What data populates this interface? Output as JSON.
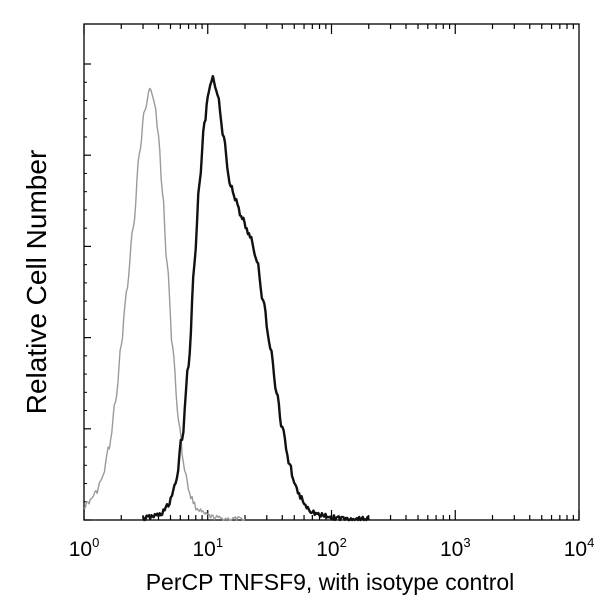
{
  "chart_data": {
    "type": "line",
    "title": "",
    "xlabel": "PerCP TNFSF9, with isotype control",
    "ylabel": "Relative Cell Number",
    "x_scale": "log",
    "xlim": [
      1,
      10000
    ],
    "ylim": [
      0,
      1
    ],
    "grid": false,
    "x_ticks": [
      {
        "base": "10",
        "exp": "0",
        "value": 1
      },
      {
        "base": "10",
        "exp": "1",
        "value": 10
      },
      {
        "base": "10",
        "exp": "2",
        "value": 100
      },
      {
        "base": "10",
        "exp": "3",
        "value": 1000
      },
      {
        "base": "10",
        "exp": "4",
        "value": 10000
      }
    ],
    "series": [
      {
        "color": "#9a9a9a",
        "x": [
          1.0,
          1.1,
          1.25,
          1.4,
          1.6,
          1.8,
          2.0,
          2.2,
          2.5,
          2.8,
          3.1,
          3.4,
          3.7,
          4.0,
          4.3,
          4.7,
          5.2,
          5.8,
          6.5,
          7.3,
          8.2,
          9.5,
          11,
          13,
          16,
          20
        ],
        "y": [
          0.03,
          0.04,
          0.06,
          0.09,
          0.16,
          0.26,
          0.38,
          0.5,
          0.64,
          0.8,
          0.9,
          0.95,
          0.92,
          0.84,
          0.72,
          0.56,
          0.38,
          0.22,
          0.11,
          0.05,
          0.025,
          0.012,
          0.006,
          0.003,
          0.002,
          0.001
        ]
      },
      {
        "color": "#111111",
        "x": [
          3.0,
          4.0,
          4.8,
          5.5,
          6.2,
          7.0,
          7.8,
          8.6,
          9.4,
          10.2,
          11.0,
          12.0,
          13.5,
          15,
          17,
          19,
          22,
          25,
          28,
          32,
          36,
          40,
          45,
          50,
          56,
          63,
          70,
          80,
          100,
          150,
          200
        ],
        "y": [
          0.003,
          0.01,
          0.03,
          0.08,
          0.18,
          0.34,
          0.56,
          0.74,
          0.87,
          0.94,
          0.97,
          0.93,
          0.84,
          0.74,
          0.7,
          0.66,
          0.62,
          0.57,
          0.48,
          0.38,
          0.28,
          0.2,
          0.13,
          0.08,
          0.05,
          0.03,
          0.018,
          0.01,
          0.005,
          0.002,
          0.001
        ]
      }
    ]
  }
}
